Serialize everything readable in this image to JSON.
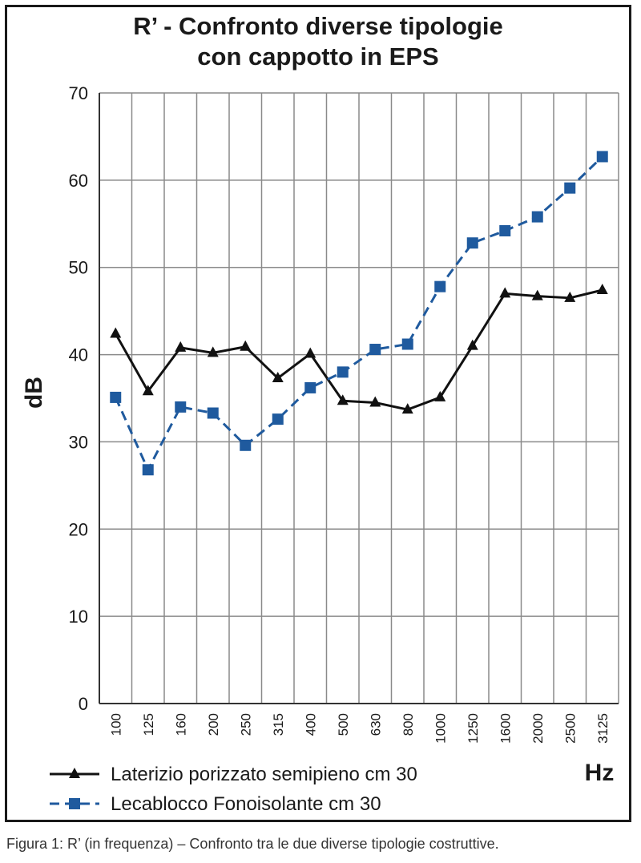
{
  "caption": "Figura 1: R’ (in frequenza) – Confronto tra le due diverse tipologie costruttive.",
  "chart_data": {
    "type": "line",
    "title_lines": [
      "R’ - Confronto diverse tipologie",
      "con cappotto in EPS"
    ],
    "xlabel": "Hz",
    "ylabel": "dB",
    "ylim": [
      0,
      70
    ],
    "yticks": [
      "0",
      "10",
      "20",
      "30",
      "40",
      "50",
      "60",
      "70"
    ],
    "categories": [
      "100",
      "125",
      "160",
      "200",
      "250",
      "315",
      "400",
      "500",
      "630",
      "800",
      "1000",
      "1250",
      "1600",
      "2000",
      "2500",
      "3125"
    ],
    "grid": true,
    "legend_position": "bottom",
    "series": [
      {
        "name": "Laterizio porizzato semipieno cm 30",
        "color": "#111111",
        "marker": "triangle",
        "line_style": "solid",
        "values": [
          42.4,
          35.8,
          40.8,
          40.2,
          40.9,
          37.3,
          40.1,
          34.7,
          34.5,
          33.7,
          35.1,
          41.0,
          47.0,
          46.7,
          46.5,
          47.4
        ]
      },
      {
        "name": "Lecablocco Fonoisolante cm 30",
        "color": "#1f5a9e",
        "marker": "square",
        "line_style": "dashed",
        "values": [
          35.1,
          26.8,
          34.0,
          33.3,
          29.6,
          32.6,
          36.2,
          38.0,
          40.6,
          41.2,
          47.8,
          52.8,
          54.2,
          55.8,
          59.1,
          62.7
        ]
      }
    ]
  }
}
